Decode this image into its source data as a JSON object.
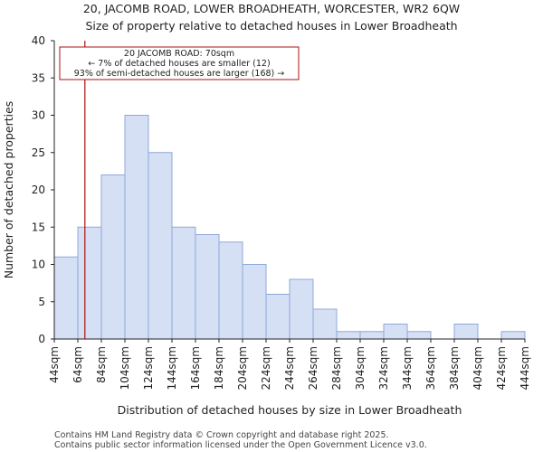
{
  "chart_data": {
    "type": "bar",
    "title": "20, JACOMB ROAD, LOWER BROADHEATH, WORCESTER, WR2 6QW",
    "subtitle": "Size of property relative to detached houses in Lower Broadheath",
    "xlabel": "Distribution of detached houses by size in Lower Broadheath",
    "ylabel": "Number of detached properties",
    "bin_edges": [
      44,
      64,
      84,
      104,
      124,
      144,
      164,
      184,
      204,
      224,
      244,
      264,
      284,
      304,
      324,
      344,
      364,
      384,
      404,
      424,
      444
    ],
    "x_tick_labels": [
      "44sqm",
      "64sqm",
      "84sqm",
      "104sqm",
      "124sqm",
      "144sqm",
      "164sqm",
      "184sqm",
      "204sqm",
      "224sqm",
      "244sqm",
      "264sqm",
      "284sqm",
      "304sqm",
      "324sqm",
      "344sqm",
      "364sqm",
      "384sqm",
      "404sqm",
      "424sqm",
      "444sqm"
    ],
    "values": [
      11,
      15,
      22,
      30,
      25,
      15,
      14,
      13,
      10,
      6,
      8,
      4,
      1,
      1,
      2,
      1,
      0,
      2,
      0,
      1
    ],
    "ylim": [
      0,
      40
    ],
    "y_ticks": [
      0,
      5,
      10,
      15,
      20,
      25,
      30,
      35,
      40
    ],
    "grid": false,
    "bar_color": "#d6e0f5",
    "bar_edge_color": "#8fa8d8",
    "marker": {
      "value": 70,
      "color": "#aa1111"
    },
    "annotation": {
      "lines": [
        "20 JACOMB ROAD: 70sqm",
        "← 7% of detached houses are smaller (12)",
        "93% of semi-detached houses are larger (168) →"
      ],
      "border_color": "#aa1111"
    }
  },
  "footer": {
    "line1": "Contains HM Land Registry data © Crown copyright and database right 2025.",
    "line2": "Contains public sector information licensed under the Open Government Licence v3.0."
  }
}
